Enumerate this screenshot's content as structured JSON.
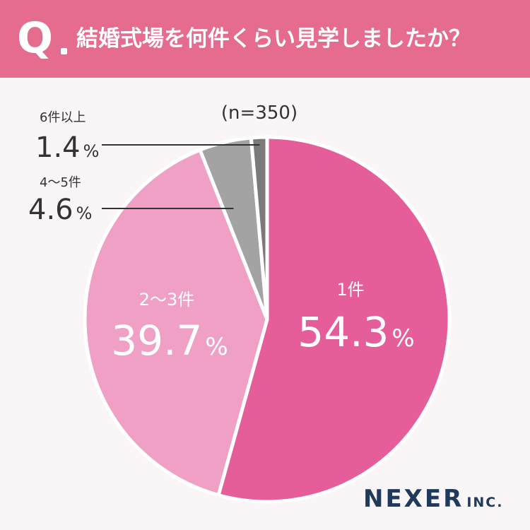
{
  "question": {
    "mark": "Q",
    "text": "結婚式場を何件くらい見学しましたか？"
  },
  "chart_data": {
    "type": "pie",
    "sample_size": "(n=350)",
    "categories": [
      "1件",
      "2〜3件",
      "4〜5件",
      "6件以上"
    ],
    "values": [
      54.3,
      39.7,
      4.6,
      1.4
    ],
    "unit": "%",
    "colors": [
      "#e55e99",
      "#f0a0c4",
      "#a3a3a3",
      "#7a7a7a"
    ]
  },
  "brand": {
    "name": "NEXER",
    "suffix": "INC."
  }
}
